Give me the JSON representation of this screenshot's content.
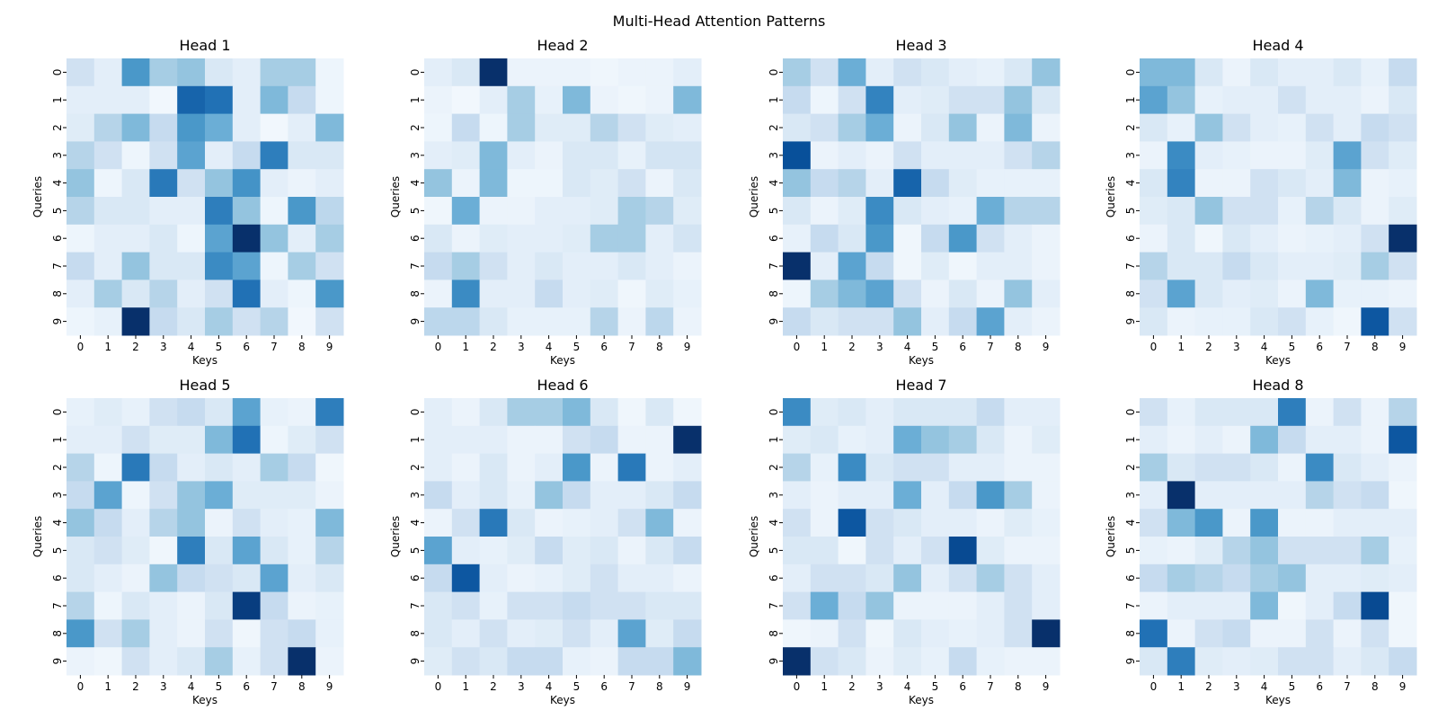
{
  "chart_data": {
    "type": "heatmap",
    "title": "Multi-Head Attention Patterns",
    "xlabel": "Keys",
    "ylabel": "Queries",
    "x_ticks": [
      "0",
      "1",
      "2",
      "3",
      "4",
      "5",
      "6",
      "7",
      "8",
      "9"
    ],
    "y_ticks": [
      "0",
      "1",
      "2",
      "3",
      "4",
      "5",
      "6",
      "7",
      "8",
      "9"
    ],
    "colormap": "Blues",
    "value_range": [
      0,
      1
    ],
    "colorbar": false,
    "heads": [
      {
        "name": "Head 1",
        "values": [
          [
            0.2,
            0.1,
            0.6,
            0.35,
            0.4,
            0.15,
            0.1,
            0.35,
            0.35,
            0.05
          ],
          [
            0.1,
            0.1,
            0.1,
            0.03,
            0.8,
            0.75,
            0.1,
            0.45,
            0.25,
            0.05
          ],
          [
            0.12,
            0.3,
            0.45,
            0.25,
            0.6,
            0.5,
            0.1,
            0.03,
            0.1,
            0.45
          ],
          [
            0.3,
            0.2,
            0.05,
            0.2,
            0.55,
            0.1,
            0.25,
            0.7,
            0.15,
            0.15
          ],
          [
            0.4,
            0.05,
            0.15,
            0.72,
            0.2,
            0.4,
            0.62,
            0.1,
            0.06,
            0.1
          ],
          [
            0.3,
            0.15,
            0.15,
            0.1,
            0.1,
            0.7,
            0.4,
            0.05,
            0.6,
            0.28
          ],
          [
            0.05,
            0.1,
            0.1,
            0.15,
            0.05,
            0.55,
            1.0,
            0.4,
            0.1,
            0.35
          ],
          [
            0.25,
            0.1,
            0.4,
            0.15,
            0.15,
            0.65,
            0.55,
            0.05,
            0.35,
            0.2
          ],
          [
            0.1,
            0.35,
            0.15,
            0.3,
            0.1,
            0.2,
            0.75,
            0.1,
            0.05,
            0.6
          ],
          [
            0.05,
            0.08,
            1.0,
            0.25,
            0.15,
            0.35,
            0.2,
            0.3,
            0.03,
            0.2
          ]
        ]
      },
      {
        "name": "Head 2",
        "values": [
          [
            0.1,
            0.15,
            1.0,
            0.06,
            0.06,
            0.06,
            0.04,
            0.06,
            0.06,
            0.1
          ],
          [
            0.06,
            0.03,
            0.1,
            0.35,
            0.08,
            0.45,
            0.06,
            0.04,
            0.06,
            0.45
          ],
          [
            0.05,
            0.25,
            0.05,
            0.35,
            0.12,
            0.12,
            0.3,
            0.2,
            0.12,
            0.1
          ],
          [
            0.1,
            0.12,
            0.45,
            0.1,
            0.06,
            0.15,
            0.15,
            0.08,
            0.18,
            0.18
          ],
          [
            0.4,
            0.06,
            0.45,
            0.05,
            0.05,
            0.15,
            0.12,
            0.2,
            0.06,
            0.15
          ],
          [
            0.04,
            0.5,
            0.06,
            0.06,
            0.1,
            0.1,
            0.12,
            0.35,
            0.3,
            0.12
          ],
          [
            0.15,
            0.06,
            0.12,
            0.1,
            0.1,
            0.12,
            0.35,
            0.35,
            0.1,
            0.18
          ],
          [
            0.25,
            0.35,
            0.2,
            0.1,
            0.15,
            0.1,
            0.1,
            0.15,
            0.1,
            0.06
          ],
          [
            0.06,
            0.65,
            0.1,
            0.1,
            0.25,
            0.1,
            0.12,
            0.04,
            0.12,
            0.08
          ],
          [
            0.28,
            0.28,
            0.15,
            0.08,
            0.08,
            0.08,
            0.3,
            0.06,
            0.28,
            0.06
          ]
        ]
      },
      {
        "name": "Head 3",
        "values": [
          [
            0.35,
            0.2,
            0.5,
            0.1,
            0.2,
            0.15,
            0.1,
            0.08,
            0.15,
            0.4
          ],
          [
            0.25,
            0.05,
            0.2,
            0.68,
            0.1,
            0.12,
            0.2,
            0.2,
            0.4,
            0.15
          ],
          [
            0.15,
            0.2,
            0.35,
            0.5,
            0.06,
            0.15,
            0.4,
            0.06,
            0.45,
            0.06
          ],
          [
            0.88,
            0.06,
            0.1,
            0.06,
            0.2,
            0.1,
            0.1,
            0.1,
            0.2,
            0.3
          ],
          [
            0.4,
            0.25,
            0.3,
            0.1,
            0.8,
            0.25,
            0.12,
            0.08,
            0.08,
            0.08
          ],
          [
            0.15,
            0.06,
            0.12,
            0.65,
            0.15,
            0.1,
            0.08,
            0.5,
            0.3,
            0.3
          ],
          [
            0.08,
            0.25,
            0.15,
            0.6,
            0.04,
            0.25,
            0.6,
            0.2,
            0.1,
            0.06
          ],
          [
            1.0,
            0.1,
            0.55,
            0.25,
            0.04,
            0.12,
            0.04,
            0.1,
            0.1,
            0.06
          ],
          [
            0.05,
            0.35,
            0.45,
            0.55,
            0.2,
            0.06,
            0.15,
            0.06,
            0.4,
            0.1
          ],
          [
            0.25,
            0.15,
            0.2,
            0.2,
            0.4,
            0.1,
            0.25,
            0.55,
            0.1,
            0.06
          ]
        ]
      },
      {
        "name": "Head 4",
        "values": [
          [
            0.45,
            0.45,
            0.15,
            0.06,
            0.15,
            0.1,
            0.1,
            0.15,
            0.08,
            0.25
          ],
          [
            0.55,
            0.4,
            0.08,
            0.1,
            0.1,
            0.2,
            0.1,
            0.1,
            0.06,
            0.15
          ],
          [
            0.15,
            0.08,
            0.4,
            0.2,
            0.1,
            0.08,
            0.2,
            0.1,
            0.25,
            0.2
          ],
          [
            0.06,
            0.65,
            0.1,
            0.08,
            0.06,
            0.06,
            0.12,
            0.55,
            0.2,
            0.12
          ],
          [
            0.15,
            0.68,
            0.06,
            0.06,
            0.2,
            0.15,
            0.1,
            0.45,
            0.06,
            0.08
          ],
          [
            0.12,
            0.15,
            0.4,
            0.2,
            0.2,
            0.08,
            0.3,
            0.15,
            0.06,
            0.12
          ],
          [
            0.06,
            0.15,
            0.04,
            0.15,
            0.1,
            0.06,
            0.08,
            0.1,
            0.2,
            1.0
          ],
          [
            0.3,
            0.15,
            0.15,
            0.25,
            0.15,
            0.1,
            0.1,
            0.12,
            0.35,
            0.2
          ],
          [
            0.2,
            0.55,
            0.15,
            0.1,
            0.12,
            0.06,
            0.45,
            0.08,
            0.08,
            0.06
          ],
          [
            0.15,
            0.06,
            0.08,
            0.08,
            0.15,
            0.2,
            0.08,
            0.04,
            0.85,
            0.2
          ]
        ]
      },
      {
        "name": "Head 5",
        "values": [
          [
            0.08,
            0.12,
            0.08,
            0.2,
            0.25,
            0.15,
            0.55,
            0.08,
            0.06,
            0.7
          ],
          [
            0.1,
            0.1,
            0.2,
            0.12,
            0.12,
            0.45,
            0.75,
            0.05,
            0.12,
            0.2
          ],
          [
            0.3,
            0.05,
            0.72,
            0.25,
            0.1,
            0.15,
            0.1,
            0.35,
            0.25,
            0.04
          ],
          [
            0.25,
            0.55,
            0.05,
            0.2,
            0.4,
            0.5,
            0.12,
            0.12,
            0.12,
            0.06
          ],
          [
            0.4,
            0.25,
            0.1,
            0.3,
            0.4,
            0.06,
            0.2,
            0.1,
            0.08,
            0.45
          ],
          [
            0.15,
            0.2,
            0.12,
            0.04,
            0.7,
            0.15,
            0.55,
            0.15,
            0.08,
            0.3
          ],
          [
            0.15,
            0.1,
            0.06,
            0.4,
            0.25,
            0.2,
            0.15,
            0.55,
            0.1,
            0.15
          ],
          [
            0.3,
            0.05,
            0.15,
            0.1,
            0.06,
            0.15,
            0.95,
            0.25,
            0.06,
            0.08
          ],
          [
            0.6,
            0.2,
            0.35,
            0.1,
            0.06,
            0.2,
            0.04,
            0.2,
            0.25,
            0.08
          ],
          [
            0.06,
            0.04,
            0.2,
            0.1,
            0.15,
            0.35,
            0.08,
            0.2,
            1.0,
            0.06
          ]
        ]
      },
      {
        "name": "Head 6",
        "values": [
          [
            0.1,
            0.06,
            0.15,
            0.35,
            0.35,
            0.45,
            0.15,
            0.04,
            0.15,
            0.04
          ],
          [
            0.1,
            0.1,
            0.1,
            0.06,
            0.06,
            0.2,
            0.25,
            0.06,
            0.06,
            1.0
          ],
          [
            0.1,
            0.06,
            0.15,
            0.06,
            0.1,
            0.6,
            0.06,
            0.72,
            0.06,
            0.1
          ],
          [
            0.25,
            0.1,
            0.15,
            0.08,
            0.4,
            0.25,
            0.1,
            0.1,
            0.15,
            0.25
          ],
          [
            0.06,
            0.2,
            0.72,
            0.15,
            0.06,
            0.08,
            0.1,
            0.2,
            0.45,
            0.06
          ],
          [
            0.55,
            0.1,
            0.08,
            0.12,
            0.25,
            0.12,
            0.15,
            0.06,
            0.15,
            0.25
          ],
          [
            0.25,
            0.85,
            0.1,
            0.06,
            0.08,
            0.12,
            0.2,
            0.1,
            0.1,
            0.06
          ],
          [
            0.15,
            0.2,
            0.08,
            0.2,
            0.2,
            0.25,
            0.2,
            0.2,
            0.15,
            0.15
          ],
          [
            0.15,
            0.1,
            0.2,
            0.1,
            0.12,
            0.2,
            0.1,
            0.55,
            0.12,
            0.25
          ],
          [
            0.12,
            0.2,
            0.15,
            0.25,
            0.25,
            0.08,
            0.06,
            0.25,
            0.25,
            0.45
          ]
        ]
      },
      {
        "name": "Head 7",
        "values": [
          [
            0.65,
            0.12,
            0.15,
            0.1,
            0.15,
            0.15,
            0.15,
            0.25,
            0.1,
            0.1
          ],
          [
            0.12,
            0.15,
            0.08,
            0.1,
            0.5,
            0.4,
            0.35,
            0.15,
            0.06,
            0.12
          ],
          [
            0.3,
            0.08,
            0.65,
            0.15,
            0.2,
            0.2,
            0.1,
            0.1,
            0.06,
            0.06
          ],
          [
            0.1,
            0.06,
            0.1,
            0.1,
            0.5,
            0.1,
            0.25,
            0.6,
            0.35,
            0.06
          ],
          [
            0.2,
            0.06,
            0.85,
            0.2,
            0.15,
            0.1,
            0.1,
            0.06,
            0.12,
            0.08
          ],
          [
            0.15,
            0.15,
            0.04,
            0.2,
            0.1,
            0.2,
            0.9,
            0.12,
            0.06,
            0.06
          ],
          [
            0.1,
            0.2,
            0.2,
            0.15,
            0.4,
            0.1,
            0.2,
            0.35,
            0.2,
            0.1
          ],
          [
            0.2,
            0.5,
            0.25,
            0.4,
            0.06,
            0.06,
            0.06,
            0.1,
            0.2,
            0.1
          ],
          [
            0.04,
            0.06,
            0.2,
            0.04,
            0.15,
            0.1,
            0.08,
            0.1,
            0.2,
            1.0
          ],
          [
            1.0,
            0.2,
            0.15,
            0.06,
            0.12,
            0.08,
            0.25,
            0.08,
            0.06,
            0.06
          ]
        ]
      },
      {
        "name": "Head 8",
        "values": [
          [
            0.2,
            0.08,
            0.15,
            0.15,
            0.15,
            0.7,
            0.06,
            0.2,
            0.06,
            0.3
          ],
          [
            0.1,
            0.06,
            0.1,
            0.06,
            0.45,
            0.25,
            0.1,
            0.1,
            0.06,
            0.85
          ],
          [
            0.35,
            0.15,
            0.2,
            0.2,
            0.15,
            0.06,
            0.65,
            0.15,
            0.1,
            0.06
          ],
          [
            0.1,
            1.0,
            0.1,
            0.1,
            0.1,
            0.1,
            0.3,
            0.2,
            0.25,
            0.04
          ],
          [
            0.2,
            0.45,
            0.6,
            0.06,
            0.6,
            0.06,
            0.06,
            0.1,
            0.1,
            0.1
          ],
          [
            0.08,
            0.06,
            0.12,
            0.3,
            0.4,
            0.2,
            0.2,
            0.2,
            0.35,
            0.08
          ],
          [
            0.25,
            0.35,
            0.3,
            0.25,
            0.35,
            0.4,
            0.1,
            0.1,
            0.12,
            0.1
          ],
          [
            0.06,
            0.1,
            0.1,
            0.1,
            0.45,
            0.04,
            0.1,
            0.25,
            0.9,
            0.04
          ],
          [
            0.75,
            0.06,
            0.2,
            0.25,
            0.06,
            0.06,
            0.2,
            0.06,
            0.2,
            0.04
          ],
          [
            0.15,
            0.7,
            0.12,
            0.1,
            0.12,
            0.2,
            0.2,
            0.1,
            0.15,
            0.25
          ]
        ]
      }
    ]
  }
}
